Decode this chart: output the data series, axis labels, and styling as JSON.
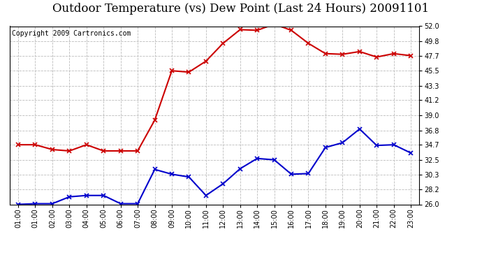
{
  "title": "Outdoor Temperature (vs) Dew Point (Last 24 Hours) 20091101",
  "copyright": "Copyright 2009 Cartronics.com",
  "x_labels": [
    "01:00",
    "01:00",
    "02:00",
    "03:00",
    "04:00",
    "05:00",
    "06:00",
    "07:00",
    "08:00",
    "09:00",
    "10:00",
    "11:00",
    "12:00",
    "13:00",
    "14:00",
    "15:00",
    "16:00",
    "17:00",
    "18:00",
    "19:00",
    "20:00",
    "21:00",
    "22:00",
    "23:00"
  ],
  "temp_values": [
    34.7,
    34.7,
    34.0,
    33.8,
    34.7,
    33.8,
    33.8,
    33.8,
    38.3,
    45.5,
    45.3,
    46.9,
    49.5,
    51.5,
    51.4,
    52.3,
    51.4,
    49.5,
    48.0,
    47.9,
    48.3,
    47.5,
    48.0,
    47.7
  ],
  "dew_values": [
    26.0,
    26.1,
    26.1,
    27.1,
    27.3,
    27.3,
    26.1,
    26.1,
    31.1,
    30.4,
    30.0,
    27.3,
    29.0,
    31.2,
    32.7,
    32.5,
    30.4,
    30.5,
    34.3,
    35.0,
    37.0,
    34.6,
    34.7,
    33.5
  ],
  "ylim": [
    26.0,
    52.0
  ],
  "yticks": [
    26.0,
    28.2,
    30.3,
    32.5,
    34.7,
    36.8,
    39.0,
    41.2,
    43.3,
    45.5,
    47.7,
    49.8,
    52.0
  ],
  "ytick_labels": [
    "26.0",
    "28.2",
    "30.3",
    "32.5",
    "34.7",
    "36.8",
    "39.0",
    "41.2",
    "43.3",
    "45.5",
    "47.7",
    "49.8",
    "52.0"
  ],
  "temp_color": "#cc0000",
  "dew_color": "#0000cc",
  "background_color": "#ffffff",
  "grid_color": "#bbbbbb",
  "title_fontsize": 12,
  "copyright_fontsize": 7
}
